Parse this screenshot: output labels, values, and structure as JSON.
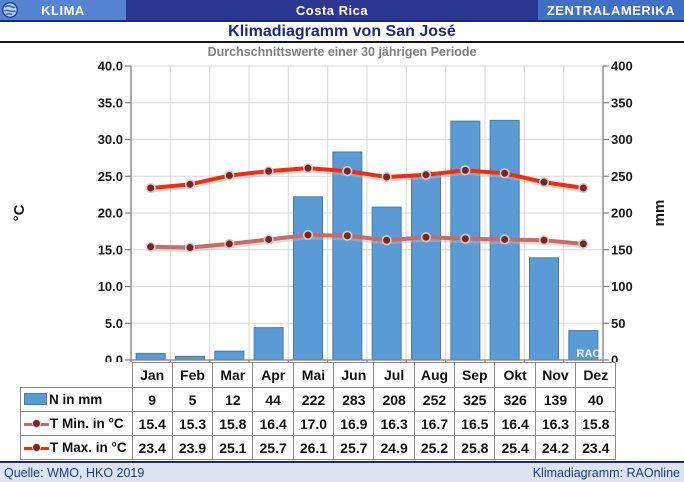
{
  "header": {
    "left_label": "KLIMA",
    "center_label": "Costa Rica",
    "right_label": "ZENTRALAMERIKA"
  },
  "title": "Klimadiagramm von San José",
  "subtitle": "Durchschnittswerte einer 30 jährigen Periode",
  "watermark": "RAO",
  "footer": {
    "source": "Quelle: WMO, HKO 2019",
    "credit": "Klimadiagramm: RAOnline"
  },
  "colors": {
    "header_left": "#5585d2",
    "header_center": "#2b3792",
    "header_right": "#3f6fc6",
    "title_text": "#1b2a80",
    "subtitle_text": "#7f7f7f",
    "bar": "#5B9BD5",
    "bar_border": "#447bb0",
    "tmin_line": "#C96A64",
    "tmax_line": "#F52B0D",
    "marker": "#7E2222",
    "marker_ring": "#cfcfcf",
    "grid": "#D9D9D9",
    "axis": "#808080",
    "footer_bg": "#dbe5f2",
    "footer_text": "#1b3a8c"
  },
  "chart_data": {
    "type": "bar",
    "subtype": "bar+line combo climate diagram",
    "categories": [
      "Jan",
      "Feb",
      "Mar",
      "Apr",
      "Mai",
      "Jun",
      "Jul",
      "Aug",
      "Sep",
      "Okt",
      "Nov",
      "Dez"
    ],
    "series": [
      {
        "name": "N in mm",
        "type": "bar",
        "axis": "right",
        "decimals": 0,
        "color": "#5B9BD5",
        "values": [
          9,
          5,
          12,
          44,
          222,
          283,
          208,
          252,
          325,
          326,
          139,
          40
        ]
      },
      {
        "name": "T Min. in °C",
        "type": "line",
        "axis": "left",
        "decimals": 1,
        "color": "#C96A64",
        "values": [
          15.4,
          15.3,
          15.8,
          16.4,
          17.0,
          16.9,
          16.3,
          16.7,
          16.5,
          16.4,
          16.3,
          15.8
        ]
      },
      {
        "name": "T Max. in °C",
        "type": "line",
        "axis": "left",
        "decimals": 1,
        "color": "#F52B0D",
        "values": [
          23.4,
          23.9,
          25.1,
          25.7,
          26.1,
          25.7,
          24.9,
          25.2,
          25.8,
          25.4,
          24.2,
          23.4
        ]
      }
    ],
    "left_axis": {
      "label": "°C",
      "min": 0,
      "max": 40,
      "step": 5,
      "decimals": 1
    },
    "right_axis": {
      "label": "mm",
      "min": 0,
      "max": 400,
      "step": 50,
      "decimals": 0
    },
    "grid": true,
    "legend_position": "table-below"
  }
}
